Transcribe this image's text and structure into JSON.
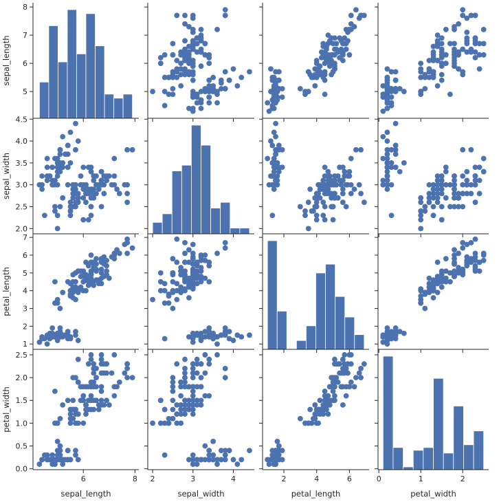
{
  "chart_data": {
    "type": "scatter",
    "variables": [
      "sepal_length",
      "sepal_width",
      "petal_length",
      "petal_width"
    ],
    "colors": {
      "marker": "#4c72b0",
      "axis": "#262626",
      "background": "#ffffff"
    },
    "grid": false,
    "diagonal": "histogram",
    "off_diagonal": "scatter",
    "axes": {
      "sepal_length": {
        "range": [
          4.05,
          8.15
        ],
        "ticks": [
          5,
          6,
          7,
          8
        ],
        "x_ticks": [
          6,
          8
        ]
      },
      "sepal_width": {
        "range": [
          1.88,
          4.52
        ],
        "ticks": [
          2.0,
          2.5,
          3.0,
          3.5,
          4.0,
          4.5
        ],
        "x_ticks": [
          2,
          3,
          4
        ]
      },
      "petal_length": {
        "range": [
          0.7,
          7.2
        ],
        "ticks": [
          1,
          2,
          3,
          4,
          5,
          6,
          7
        ],
        "x_ticks": [
          2,
          4,
          6
        ]
      },
      "petal_width": {
        "range": [
          -0.02,
          2.62
        ],
        "ticks": [
          0.0,
          0.5,
          1.0,
          1.5,
          2.0,
          2.5
        ],
        "x_ticks": [
          0,
          1,
          2
        ]
      }
    },
    "histograms": {
      "sepal_length": {
        "bins": [
          4.3,
          4.66,
          5.02,
          5.38,
          5.74,
          6.1,
          6.46,
          6.82,
          7.18,
          7.54,
          7.9
        ],
        "counts": [
          9,
          23,
          14,
          27,
          16,
          26,
          18,
          6,
          5,
          6
        ]
      },
      "sepal_width": {
        "bins": [
          2.0,
          2.24,
          2.48,
          2.72,
          2.96,
          3.2,
          3.44,
          3.68,
          3.92,
          4.16,
          4.4
        ],
        "counts": [
          4,
          7,
          22,
          24,
          38,
          31,
          9,
          11,
          2,
          2
        ]
      },
      "petal_length": {
        "bins": [
          1.0,
          1.59,
          2.18,
          2.77,
          3.36,
          3.95,
          4.54,
          5.13,
          5.72,
          6.31,
          6.9
        ],
        "counts": [
          37,
          13,
          0,
          3,
          8,
          26,
          29,
          18,
          11,
          5
        ]
      },
      "petal_width": {
        "bins": [
          0.1,
          0.34,
          0.58,
          0.82,
          1.06,
          1.3,
          1.54,
          1.78,
          2.02,
          2.26,
          2.5
        ],
        "counts": [
          41,
          8,
          1,
          7,
          8,
          33,
          6,
          23,
          9,
          14
        ]
      }
    },
    "points": [
      [
        5.1,
        3.5,
        1.4,
        0.2
      ],
      [
        4.9,
        3.0,
        1.4,
        0.2
      ],
      [
        4.7,
        3.2,
        1.3,
        0.2
      ],
      [
        4.6,
        3.1,
        1.5,
        0.2
      ],
      [
        5.0,
        3.6,
        1.4,
        0.2
      ],
      [
        5.4,
        3.9,
        1.7,
        0.4
      ],
      [
        4.6,
        3.4,
        1.4,
        0.3
      ],
      [
        5.0,
        3.4,
        1.5,
        0.2
      ],
      [
        4.4,
        2.9,
        1.4,
        0.2
      ],
      [
        4.9,
        3.1,
        1.5,
        0.1
      ],
      [
        5.4,
        3.7,
        1.5,
        0.2
      ],
      [
        4.8,
        3.4,
        1.6,
        0.2
      ],
      [
        4.8,
        3.0,
        1.4,
        0.1
      ],
      [
        4.3,
        3.0,
        1.1,
        0.1
      ],
      [
        5.8,
        4.0,
        1.2,
        0.2
      ],
      [
        5.7,
        4.4,
        1.5,
        0.4
      ],
      [
        5.4,
        3.9,
        1.3,
        0.4
      ],
      [
        5.1,
        3.5,
        1.4,
        0.3
      ],
      [
        5.7,
        3.8,
        1.7,
        0.3
      ],
      [
        5.1,
        3.8,
        1.5,
        0.3
      ],
      [
        5.4,
        3.4,
        1.7,
        0.2
      ],
      [
        5.1,
        3.7,
        1.5,
        0.4
      ],
      [
        4.6,
        3.6,
        1.0,
        0.2
      ],
      [
        5.1,
        3.3,
        1.7,
        0.5
      ],
      [
        4.8,
        3.4,
        1.9,
        0.2
      ],
      [
        5.0,
        3.0,
        1.6,
        0.2
      ],
      [
        5.0,
        3.4,
        1.6,
        0.4
      ],
      [
        5.2,
        3.5,
        1.5,
        0.2
      ],
      [
        5.2,
        3.4,
        1.4,
        0.2
      ],
      [
        4.7,
        3.2,
        1.6,
        0.2
      ],
      [
        4.8,
        3.1,
        1.6,
        0.2
      ],
      [
        5.4,
        3.4,
        1.5,
        0.4
      ],
      [
        5.2,
        4.1,
        1.5,
        0.1
      ],
      [
        5.5,
        4.2,
        1.4,
        0.2
      ],
      [
        4.9,
        3.1,
        1.5,
        0.2
      ],
      [
        5.0,
        3.2,
        1.2,
        0.2
      ],
      [
        5.5,
        3.5,
        1.3,
        0.2
      ],
      [
        4.9,
        3.6,
        1.4,
        0.1
      ],
      [
        4.4,
        3.0,
        1.3,
        0.2
      ],
      [
        5.1,
        3.4,
        1.5,
        0.2
      ],
      [
        5.0,
        3.5,
        1.3,
        0.3
      ],
      [
        4.5,
        2.3,
        1.3,
        0.3
      ],
      [
        4.4,
        3.2,
        1.3,
        0.2
      ],
      [
        5.0,
        3.5,
        1.6,
        0.6
      ],
      [
        5.1,
        3.8,
        1.9,
        0.4
      ],
      [
        4.8,
        3.0,
        1.4,
        0.3
      ],
      [
        5.1,
        3.8,
        1.6,
        0.2
      ],
      [
        4.6,
        3.2,
        1.4,
        0.2
      ],
      [
        5.3,
        3.7,
        1.5,
        0.2
      ],
      [
        5.0,
        3.3,
        1.4,
        0.2
      ],
      [
        7.0,
        3.2,
        4.7,
        1.4
      ],
      [
        6.4,
        3.2,
        4.5,
        1.5
      ],
      [
        6.9,
        3.1,
        4.9,
        1.5
      ],
      [
        5.5,
        2.3,
        4.0,
        1.3
      ],
      [
        6.5,
        2.8,
        4.6,
        1.5
      ],
      [
        5.7,
        2.8,
        4.5,
        1.3
      ],
      [
        6.3,
        3.3,
        4.7,
        1.6
      ],
      [
        4.9,
        2.4,
        3.3,
        1.0
      ],
      [
        6.6,
        2.9,
        4.6,
        1.3
      ],
      [
        5.2,
        2.7,
        3.9,
        1.4
      ],
      [
        5.0,
        2.0,
        3.5,
        1.0
      ],
      [
        5.9,
        3.0,
        4.2,
        1.5
      ],
      [
        6.0,
        2.2,
        4.0,
        1.0
      ],
      [
        6.1,
        2.9,
        4.7,
        1.4
      ],
      [
        5.6,
        2.9,
        3.6,
        1.3
      ],
      [
        6.7,
        3.1,
        4.4,
        1.4
      ],
      [
        5.6,
        3.0,
        4.5,
        1.5
      ],
      [
        5.8,
        2.7,
        4.1,
        1.0
      ],
      [
        6.2,
        2.2,
        4.5,
        1.5
      ],
      [
        5.6,
        2.5,
        3.9,
        1.1
      ],
      [
        5.9,
        3.2,
        4.8,
        1.8
      ],
      [
        6.1,
        2.8,
        4.0,
        1.3
      ],
      [
        6.3,
        2.5,
        4.9,
        1.5
      ],
      [
        6.1,
        2.8,
        4.7,
        1.2
      ],
      [
        6.4,
        2.9,
        4.3,
        1.3
      ],
      [
        6.6,
        3.0,
        4.4,
        1.4
      ],
      [
        6.8,
        2.8,
        4.8,
        1.4
      ],
      [
        6.7,
        3.0,
        5.0,
        1.7
      ],
      [
        6.0,
        2.9,
        4.5,
        1.5
      ],
      [
        5.7,
        2.6,
        3.5,
        1.0
      ],
      [
        5.5,
        2.4,
        3.8,
        1.1
      ],
      [
        5.5,
        2.4,
        3.7,
        1.0
      ],
      [
        5.8,
        2.7,
        3.9,
        1.2
      ],
      [
        6.0,
        2.7,
        5.1,
        1.6
      ],
      [
        5.4,
        3.0,
        4.5,
        1.5
      ],
      [
        6.0,
        3.4,
        4.5,
        1.6
      ],
      [
        6.7,
        3.1,
        4.7,
        1.5
      ],
      [
        6.3,
        2.3,
        4.4,
        1.3
      ],
      [
        5.6,
        3.0,
        4.1,
        1.3
      ],
      [
        5.5,
        2.5,
        4.0,
        1.3
      ],
      [
        5.5,
        2.6,
        4.4,
        1.2
      ],
      [
        6.1,
        3.0,
        4.6,
        1.4
      ],
      [
        5.8,
        2.6,
        4.0,
        1.2
      ],
      [
        5.0,
        2.3,
        3.3,
        1.0
      ],
      [
        5.6,
        2.7,
        4.2,
        1.3
      ],
      [
        5.7,
        3.0,
        4.2,
        1.2
      ],
      [
        5.7,
        2.9,
        4.2,
        1.3
      ],
      [
        6.2,
        2.9,
        4.3,
        1.3
      ],
      [
        5.1,
        2.5,
        3.0,
        1.1
      ],
      [
        5.7,
        2.8,
        4.1,
        1.3
      ],
      [
        6.3,
        3.3,
        6.0,
        2.5
      ],
      [
        5.8,
        2.7,
        5.1,
        1.9
      ],
      [
        7.1,
        3.0,
        5.9,
        2.1
      ],
      [
        6.3,
        2.9,
        5.6,
        1.8
      ],
      [
        6.5,
        3.0,
        5.8,
        2.2
      ],
      [
        7.6,
        3.0,
        6.6,
        2.1
      ],
      [
        4.9,
        2.5,
        4.5,
        1.7
      ],
      [
        7.3,
        2.9,
        6.3,
        1.8
      ],
      [
        6.7,
        2.5,
        5.8,
        1.8
      ],
      [
        7.2,
        3.6,
        6.1,
        2.5
      ],
      [
        6.5,
        3.2,
        5.1,
        2.0
      ],
      [
        6.4,
        2.7,
        5.3,
        1.9
      ],
      [
        6.8,
        3.0,
        5.5,
        2.1
      ],
      [
        5.7,
        2.5,
        5.0,
        2.0
      ],
      [
        5.8,
        2.8,
        5.1,
        2.4
      ],
      [
        6.4,
        3.2,
        5.3,
        2.3
      ],
      [
        6.5,
        3.0,
        5.5,
        1.8
      ],
      [
        7.7,
        3.8,
        6.7,
        2.2
      ],
      [
        7.7,
        2.6,
        6.9,
        2.3
      ],
      [
        6.0,
        2.2,
        5.0,
        1.5
      ],
      [
        6.9,
        3.2,
        5.7,
        2.3
      ],
      [
        5.6,
        2.8,
        4.9,
        2.0
      ],
      [
        7.7,
        2.8,
        6.7,
        2.0
      ],
      [
        6.3,
        2.7,
        4.9,
        1.8
      ],
      [
        6.7,
        3.3,
        5.7,
        2.1
      ],
      [
        7.2,
        3.2,
        6.0,
        1.8
      ],
      [
        6.2,
        2.8,
        4.8,
        1.8
      ],
      [
        6.1,
        3.0,
        4.9,
        1.8
      ],
      [
        6.4,
        2.8,
        5.6,
        2.1
      ],
      [
        7.2,
        3.0,
        5.8,
        1.6
      ],
      [
        7.4,
        2.8,
        6.1,
        1.9
      ],
      [
        7.9,
        3.8,
        6.4,
        2.0
      ],
      [
        6.4,
        2.8,
        5.6,
        2.2
      ],
      [
        6.3,
        2.8,
        5.1,
        1.5
      ],
      [
        6.1,
        2.6,
        5.6,
        1.4
      ],
      [
        7.7,
        3.0,
        6.1,
        2.3
      ],
      [
        6.3,
        3.4,
        5.6,
        2.4
      ],
      [
        6.4,
        3.1,
        5.5,
        1.8
      ],
      [
        6.0,
        3.0,
        4.8,
        1.8
      ],
      [
        6.9,
        3.1,
        5.4,
        2.1
      ],
      [
        6.7,
        3.1,
        5.6,
        2.4
      ],
      [
        6.9,
        3.1,
        5.1,
        2.3
      ],
      [
        5.8,
        2.7,
        5.1,
        1.9
      ],
      [
        6.8,
        3.2,
        5.9,
        2.3
      ],
      [
        6.7,
        3.3,
        5.7,
        2.5
      ],
      [
        6.7,
        3.0,
        5.2,
        2.3
      ],
      [
        6.3,
        2.5,
        5.0,
        1.9
      ],
      [
        6.5,
        3.0,
        5.2,
        2.0
      ],
      [
        6.2,
        3.4,
        5.4,
        2.3
      ],
      [
        5.9,
        3.0,
        5.1,
        1.8
      ]
    ]
  }
}
